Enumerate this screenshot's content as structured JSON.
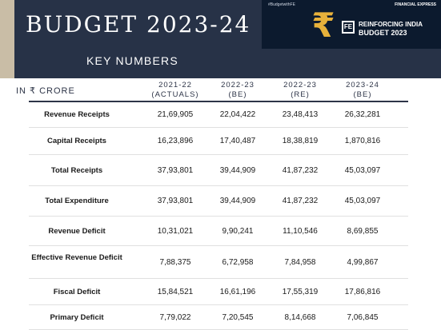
{
  "header": {
    "title": "BUDGET 2023-24",
    "subtitle": "KEY NUMBERS",
    "banner": {
      "hashtag": "#BudgetwithFE",
      "brand": "FINANCIAL EXPRESS",
      "logo": "FE",
      "tagline": "REINFORCING INDIA",
      "banner_title": "BUDGET 2023",
      "icon": "rupee-icon"
    }
  },
  "table": {
    "unit": "IN ₹ CRORE",
    "columns": [
      {
        "line1": "2021-22",
        "line2": "(ACTUALS)"
      },
      {
        "line1": "2022-23",
        "line2": "(BE)"
      },
      {
        "line1": "2022-23",
        "line2": "(RE)"
      },
      {
        "line1": "2023-24",
        "line2": "(BE)"
      }
    ],
    "rows": [
      {
        "label": "Revenue Receipts",
        "values": [
          "21,69,905",
          "22,04,422",
          "23,48,413",
          "26,32,281"
        ]
      },
      {
        "label": "Capital Receipts",
        "values": [
          "16,23,896",
          "17,40,487",
          "18,38,819",
          "1,870,816"
        ]
      },
      {
        "label": "Total Receipts",
        "values": [
          "37,93,801",
          "39,44,909",
          "41,87,232",
          "45,03,097"
        ]
      },
      {
        "label": "Total Expenditure",
        "values": [
          "37,93,801",
          "39,44,909",
          "41,87,232",
          "45,03,097"
        ]
      },
      {
        "label": "Revenue Deficit",
        "values": [
          "10,31,021",
          "9,90,241",
          "11,10,546",
          "8,69,855"
        ]
      },
      {
        "label": "Effective Revenue Deficit",
        "values": [
          "7,88,375",
          "6,72,958",
          "7,84,958",
          "4,99,867"
        ]
      },
      {
        "label": "Fiscal Deficit",
        "values": [
          "15,84,521",
          "16,61,196",
          "17,55,319",
          "17,86,816"
        ]
      },
      {
        "label": "Primary Deficit",
        "values": [
          "7,79,022",
          "7,20,545",
          "8,14,668",
          "7,06,845"
        ]
      }
    ]
  }
}
